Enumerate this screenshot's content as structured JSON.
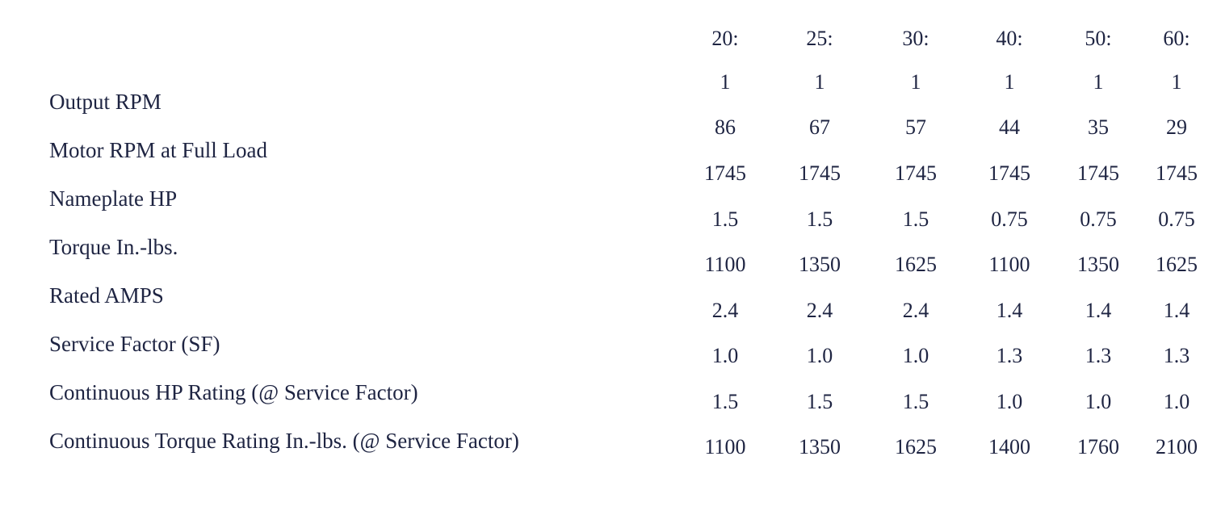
{
  "row_labels": [
    "Output RPM",
    "Motor RPM at Full Load",
    "Nameplate HP",
    "Torque In.-lbs.",
    "Rated AMPS",
    "Service Factor (SF)",
    "Continuous HP Rating (@ Service Factor)",
    "Continuous Torque Rating In.-lbs. (@ Service Factor)"
  ],
  "columns": [
    {
      "ratio_top": "20:",
      "ratio_bottom": "1",
      "values": [
        "86",
        "1745",
        "1.5",
        "1100",
        "2.4",
        "1.0",
        "1.5",
        "1100"
      ]
    },
    {
      "ratio_top": "25:",
      "ratio_bottom": "1",
      "values": [
        "67",
        "1745",
        "1.5",
        "1350",
        "2.4",
        "1.0",
        "1.5",
        "1350"
      ]
    },
    {
      "ratio_top": "30:",
      "ratio_bottom": "1",
      "values": [
        "57",
        "1745",
        "1.5",
        "1625",
        "2.4",
        "1.0",
        "1.5",
        "1625"
      ]
    },
    {
      "ratio_top": "40:",
      "ratio_bottom": "1",
      "values": [
        "44",
        "1745",
        "0.75",
        "1100",
        "1.4",
        "1.3",
        "1.0",
        "1400"
      ]
    },
    {
      "ratio_top": "50:",
      "ratio_bottom": "1",
      "values": [
        "35",
        "1745",
        "0.75",
        "1350",
        "1.4",
        "1.3",
        "1.0",
        "1760"
      ]
    },
    {
      "ratio_top": "60:",
      "ratio_bottom": "1",
      "values": [
        "29",
        "1745",
        "0.75",
        "1625",
        "1.4",
        "1.3",
        "1.0",
        "2100"
      ]
    }
  ]
}
